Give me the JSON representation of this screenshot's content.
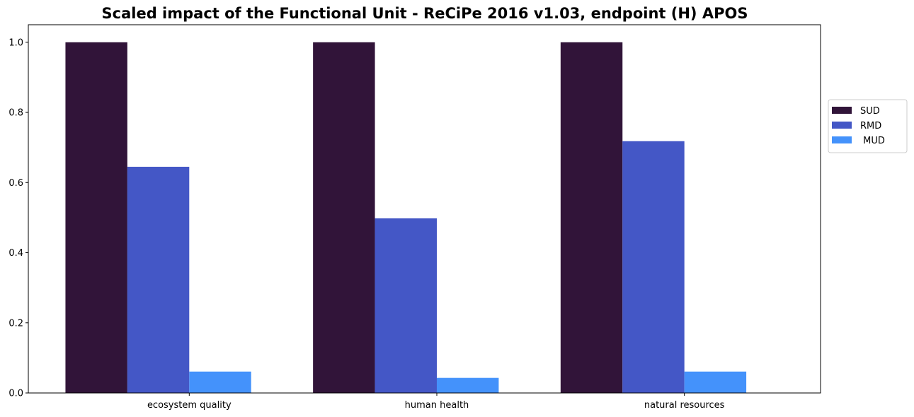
{
  "chart_data": {
    "type": "bar",
    "title": "Scaled impact of the Functional Unit - ReCiPe 2016 v1.03, endpoint (H) APOS",
    "xlabel": "",
    "ylabel": "",
    "categories": [
      "ecosystem quality",
      "human health",
      "natural resources"
    ],
    "series": [
      {
        "name": "SUD",
        "color": "#311439",
        "values": [
          1.0,
          1.0,
          1.0
        ]
      },
      {
        "name": "RMD",
        "color": "#4457c6",
        "values": [
          0.645,
          0.498,
          0.718
        ]
      },
      {
        "name": " MUD",
        "color": "#4492fb",
        "values": [
          0.061,
          0.043,
          0.061
        ]
      }
    ],
    "ylim": [
      0,
      1.05
    ],
    "yticks": [
      "0.0",
      "0.2",
      "0.4",
      "0.6",
      "0.8",
      "1.0"
    ],
    "grid": false,
    "legend": "right"
  }
}
